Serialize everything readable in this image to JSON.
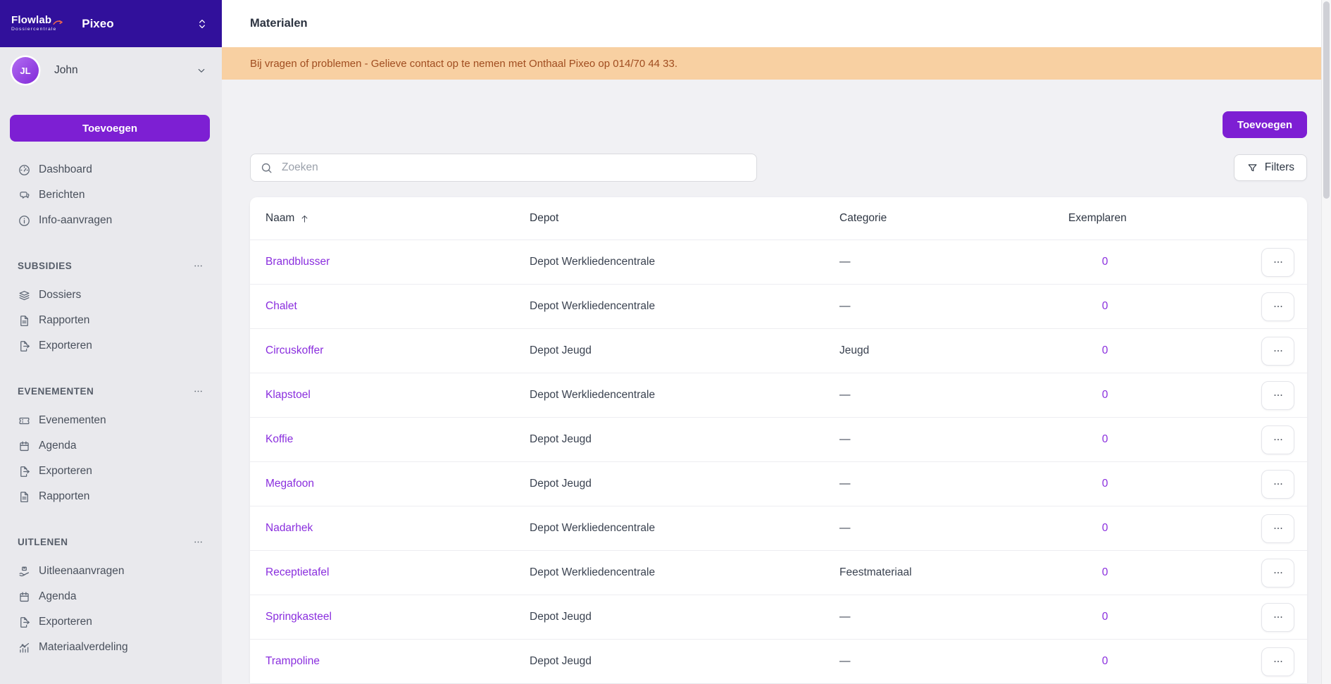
{
  "colors": {
    "brand_purple": "#31109b",
    "accent_purple": "#7d1fd3",
    "link_purple": "#8a2ede",
    "banner_bg": "#f8d0a2",
    "banner_text": "#a04d20",
    "sidebar_bg": "#e9e9ed",
    "main_bg": "#f1f1f4"
  },
  "sidebar": {
    "brand": {
      "logo_title": "Flowlab",
      "logo_subtitle": "Dossiercentrale",
      "app_name": "Pixeo",
      "switcher_icon": "chevrons-up-down-icon"
    },
    "user": {
      "initials": "JL",
      "name": "John",
      "menu_icon": "chevron-down-icon"
    },
    "add_button_label": "Toevoegen",
    "top_items": [
      {
        "label": "Dashboard",
        "icon": "dashboard-icon"
      },
      {
        "label": "Berichten",
        "icon": "chat-icon"
      },
      {
        "label": "Info-aanvragen",
        "icon": "info-icon"
      }
    ],
    "sections": [
      {
        "title": "SUBSIDIES",
        "menu_icon": "ellipsis-icon",
        "items": [
          {
            "label": "Dossiers",
            "icon": "layers-icon"
          },
          {
            "label": "Rapporten",
            "icon": "document-icon"
          },
          {
            "label": "Exporteren",
            "icon": "export-icon"
          }
        ]
      },
      {
        "title": "EVENEMENTEN",
        "menu_icon": "ellipsis-icon",
        "items": [
          {
            "label": "Evenementen",
            "icon": "ticket-icon"
          },
          {
            "label": "Agenda",
            "icon": "calendar-icon"
          },
          {
            "label": "Exporteren",
            "icon": "export-icon"
          },
          {
            "label": "Rapporten",
            "icon": "document-icon"
          }
        ]
      },
      {
        "title": "UITLENEN",
        "menu_icon": "ellipsis-icon",
        "items": [
          {
            "label": "Uitleenaanvragen",
            "icon": "hand-box-icon"
          },
          {
            "label": "Agenda",
            "icon": "calendar-icon"
          },
          {
            "label": "Exporteren",
            "icon": "export-icon"
          },
          {
            "label": "Materiaalverdeling",
            "icon": "chart-icon"
          }
        ]
      }
    ]
  },
  "header": {
    "title": "Materialen"
  },
  "banner": {
    "text": "Bij vragen of problemen - Gelieve contact op te nemen met Onthaal Pixeo op 014/70 44 33."
  },
  "toolbar": {
    "add_button_label": "Toevoegen",
    "search_placeholder": "Zoeken",
    "search_value": "",
    "search_icon": "search-icon",
    "filters_label": "Filters",
    "filters_icon": "filter-icon"
  },
  "table": {
    "columns": [
      "Naam",
      "Depot",
      "Categorie",
      "Exemplaren"
    ],
    "sort": {
      "column": "Naam",
      "direction": "asc",
      "icon": "arrow-up-icon"
    },
    "row_action_icon": "ellipsis-icon",
    "rows": [
      {
        "naam": "Brandblusser",
        "depot": "Depot Werkliedencentrale",
        "categorie": "—",
        "exemplaren": "0"
      },
      {
        "naam": "Chalet",
        "depot": "Depot Werkliedencentrale",
        "categorie": "—",
        "exemplaren": "0"
      },
      {
        "naam": "Circuskoffer",
        "depot": "Depot Jeugd",
        "categorie": "Jeugd",
        "exemplaren": "0"
      },
      {
        "naam": "Klapstoel",
        "depot": "Depot Werkliedencentrale",
        "categorie": "—",
        "exemplaren": "0"
      },
      {
        "naam": "Koffie",
        "depot": "Depot Jeugd",
        "categorie": "—",
        "exemplaren": "0"
      },
      {
        "naam": "Megafoon",
        "depot": "Depot Jeugd",
        "categorie": "—",
        "exemplaren": "0"
      },
      {
        "naam": "Nadarhek",
        "depot": "Depot Werkliedencentrale",
        "categorie": "—",
        "exemplaren": "0"
      },
      {
        "naam": "Receptietafel",
        "depot": "Depot Werkliedencentrale",
        "categorie": "Feestmateriaal",
        "exemplaren": "0"
      },
      {
        "naam": "Springkasteel",
        "depot": "Depot Jeugd",
        "categorie": "—",
        "exemplaren": "0"
      },
      {
        "naam": "Trampoline",
        "depot": "Depot Jeugd",
        "categorie": "—",
        "exemplaren": "0"
      }
    ]
  }
}
